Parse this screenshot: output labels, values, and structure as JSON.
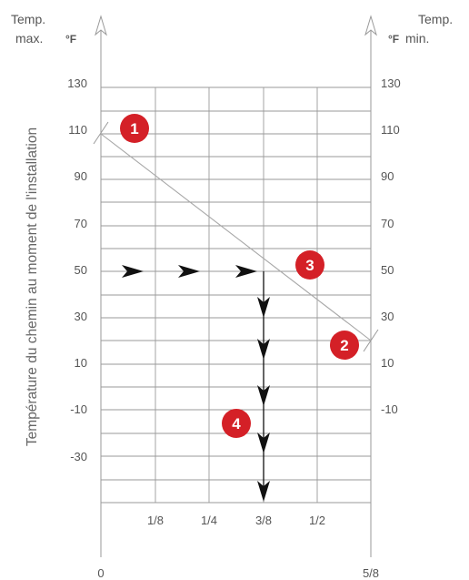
{
  "left_axis": {
    "header_line1": "Temp.",
    "header_line2": "max.",
    "unit": "°F"
  },
  "right_axis": {
    "header_line1": "Temp.",
    "header_line2": "min.",
    "unit": "°F"
  },
  "y_axis_title": "Température du chemin au moment de l'installation",
  "left_ticks": [
    "130",
    "110",
    "90",
    "70",
    "50",
    "30",
    "10",
    "-10",
    "-30"
  ],
  "right_ticks": [
    "130",
    "110",
    "90",
    "70",
    "50",
    "30",
    "10",
    "-10"
  ],
  "x_ticks": [
    "1/8",
    "1/4",
    "3/8",
    "1/2"
  ],
  "x_ends": {
    "start": "0",
    "end": "5/8"
  },
  "markers": [
    "1",
    "2",
    "3",
    "4"
  ],
  "colors": {
    "marker": "#d42027",
    "grid": "#9a9a9a",
    "line": "#a8a8a8",
    "arrow": "#111111"
  },
  "chart_data": {
    "type": "line",
    "series": [
      {
        "x": [
          0,
          0.625
        ],
        "y": [
          110,
          20
        ]
      }
    ],
    "xlim": [
      0,
      0.625
    ],
    "ylim": [
      -50,
      130
    ],
    "reading_path": {
      "horizontal_at_y": 50,
      "down_at_x": 0.375
    }
  }
}
